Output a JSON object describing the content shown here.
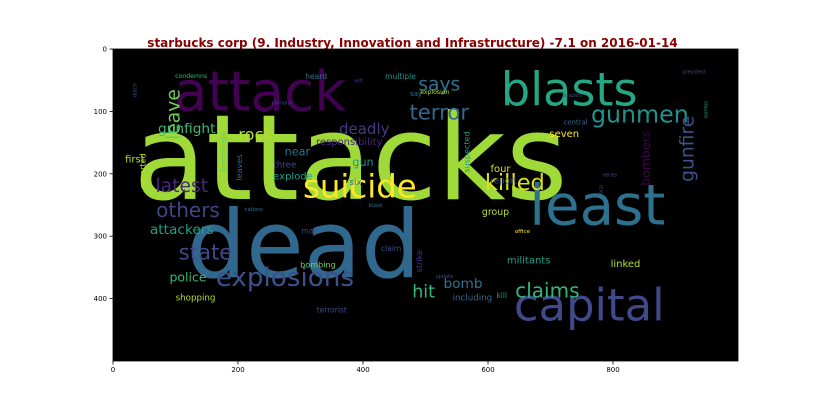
{
  "chart_data": {
    "type": "wordcloud",
    "title": "starbucks corp (9. Industry, Innovation and Infrastructure) -7.1 on 2016-01-14",
    "x_range": [
      0,
      1000
    ],
    "y_range": [
      0,
      500
    ],
    "x_ticks": [
      0,
      200,
      400,
      600,
      800
    ],
    "y_ticks": [
      0,
      100,
      200,
      300,
      400
    ],
    "background": "#000000",
    "words": [
      {
        "text": "attacks",
        "x": 380,
        "y": 175,
        "size": 190,
        "color": "#a0da39"
      },
      {
        "text": "dead",
        "x": 305,
        "y": 315,
        "size": 150,
        "color": "#31688e"
      },
      {
        "text": "attack",
        "x": 235,
        "y": 68,
        "size": 88,
        "color": "#440154"
      },
      {
        "text": "blasts",
        "x": 730,
        "y": 65,
        "size": 74,
        "color": "#26a784"
      },
      {
        "text": "least",
        "x": 775,
        "y": 252,
        "size": 90,
        "color": "#2c728e"
      },
      {
        "text": "capital",
        "x": 762,
        "y": 410,
        "size": 72,
        "color": "#3e4a89"
      },
      {
        "text": "suicide",
        "x": 395,
        "y": 220,
        "size": 52,
        "color": "#fde725"
      },
      {
        "text": "explosions",
        "x": 275,
        "y": 367,
        "size": 42,
        "color": "#3b528b"
      },
      {
        "text": "gunmen",
        "x": 843,
        "y": 105,
        "size": 38,
        "color": "#20928c"
      },
      {
        "text": "terror",
        "x": 522,
        "y": 101,
        "size": 34,
        "color": "#31688e"
      },
      {
        "text": "killed",
        "x": 643,
        "y": 215,
        "size": 36,
        "color": "#d8e219"
      },
      {
        "text": "says",
        "x": 522,
        "y": 58,
        "size": 30,
        "color": "#2c728e"
      },
      {
        "text": "state",
        "x": 148,
        "y": 325,
        "size": 34,
        "color": "#3e4a89"
      },
      {
        "text": "others",
        "x": 120,
        "y": 258,
        "size": 32,
        "color": "#414487"
      },
      {
        "text": "claims",
        "x": 695,
        "y": 387,
        "size": 32,
        "color": "#35b779"
      },
      {
        "text": "latest",
        "x": 110,
        "y": 220,
        "size": 30,
        "color": "#482878"
      },
      {
        "text": "leave",
        "x": 98,
        "y": 105,
        "size": 30,
        "color": "#6ece58",
        "rotate": true
      },
      {
        "text": "gunfire",
        "x": 920,
        "y": 160,
        "size": 30,
        "color": "#3b528b",
        "rotate": true
      },
      {
        "text": "rock",
        "x": 228,
        "y": 137,
        "size": 26,
        "color": "#b5de2b"
      },
      {
        "text": "deadly",
        "x": 402,
        "y": 128,
        "size": 24,
        "color": "#443a83"
      },
      {
        "text": "gunfight",
        "x": 118,
        "y": 128,
        "size": 22,
        "color": "#3aba76"
      },
      {
        "text": "attackers",
        "x": 110,
        "y": 290,
        "size": 22,
        "color": "#1f9e89"
      },
      {
        "text": "hit",
        "x": 497,
        "y": 390,
        "size": 28,
        "color": "#35b779"
      },
      {
        "text": "bomb",
        "x": 560,
        "y": 377,
        "size": 22,
        "color": "#2c728e"
      },
      {
        "text": "police",
        "x": 120,
        "y": 365,
        "size": 20,
        "color": "#35b779"
      },
      {
        "text": "bombers",
        "x": 852,
        "y": 175,
        "size": 20,
        "color": "#440154",
        "rotate": true
      },
      {
        "text": "seven",
        "x": 722,
        "y": 137,
        "size": 16,
        "color": "#fde725"
      },
      {
        "text": "responsibility",
        "x": 378,
        "y": 150,
        "size": 16,
        "color": "#482878"
      },
      {
        "text": "near",
        "x": 295,
        "y": 165,
        "size": 18,
        "color": "#2c728e"
      },
      {
        "text": "gun",
        "x": 400,
        "y": 182,
        "size": 18,
        "color": "#21918c"
      },
      {
        "text": "explode",
        "x": 288,
        "y": 205,
        "size": 16,
        "color": "#1f9e89"
      },
      {
        "text": "three",
        "x": 275,
        "y": 187,
        "size": 14,
        "color": "#3e4a89"
      },
      {
        "text": "six",
        "x": 388,
        "y": 215,
        "size": 14,
        "color": "#2c728e"
      },
      {
        "text": "first",
        "x": 35,
        "y": 178,
        "size": 16,
        "color": "#b5de2b"
      },
      {
        "text": "four",
        "x": 620,
        "y": 193,
        "size": 16,
        "color": "#d8e219"
      },
      {
        "text": "group",
        "x": 612,
        "y": 262,
        "size": 15,
        "color": "#b5de2b"
      },
      {
        "text": "report",
        "x": 625,
        "y": 212,
        "size": 14,
        "color": "#3e4a89"
      },
      {
        "text": "militants",
        "x": 665,
        "y": 340,
        "size": 16,
        "color": "#1f9e89"
      },
      {
        "text": "linked",
        "x": 820,
        "y": 345,
        "size": 16,
        "color": "#b5de2b"
      },
      {
        "text": "shopping",
        "x": 132,
        "y": 400,
        "size": 14,
        "color": "#b5de2b"
      },
      {
        "text": "including",
        "x": 575,
        "y": 400,
        "size": 14,
        "color": "#31688e"
      },
      {
        "text": "bombing",
        "x": 328,
        "y": 345,
        "size": 13,
        "color": "#6ece58"
      },
      {
        "text": "strike",
        "x": 490,
        "y": 340,
        "size": 13,
        "color": "#443a83",
        "rotate": true
      },
      {
        "text": "kill",
        "x": 622,
        "y": 395,
        "size": 12,
        "color": "#21918c"
      },
      {
        "text": "terrorist",
        "x": 350,
        "y": 418,
        "size": 12,
        "color": "#3e4a89"
      },
      {
        "text": "claim",
        "x": 445,
        "y": 320,
        "size": 12,
        "color": "#3e4a89"
      },
      {
        "text": "man",
        "x": 315,
        "y": 292,
        "size": 12,
        "color": "#3e4a89"
      },
      {
        "text": "reported",
        "x": 47,
        "y": 195,
        "size": 13,
        "color": "#b5de2b",
        "rotate": true
      },
      {
        "text": "bombings",
        "x": 176,
        "y": 165,
        "size": 13,
        "color": "#6ece58",
        "rotate": true
      },
      {
        "text": "leaves",
        "x": 202,
        "y": 190,
        "size": 13,
        "color": "#31688e",
        "rotate": true
      },
      {
        "text": "suspected",
        "x": 566,
        "y": 165,
        "size": 13,
        "color": "#1f9e89",
        "rotate": true
      },
      {
        "text": "central",
        "x": 740,
        "y": 118,
        "size": 11,
        "color": "#31688e"
      },
      {
        "text": "heard",
        "x": 325,
        "y": 44,
        "size": 12,
        "color": "#2c728e"
      },
      {
        "text": "multiple",
        "x": 460,
        "y": 44,
        "size": 12,
        "color": "#20928c"
      },
      {
        "text": "say",
        "x": 485,
        "y": 72,
        "size": 11,
        "color": "#2c728e"
      },
      {
        "text": "explosion",
        "x": 515,
        "y": 70,
        "size": 10,
        "color": "#b5de2b"
      },
      {
        "text": "brazen",
        "x": 735,
        "y": 75,
        "size": 9,
        "color": "#3e4a89"
      },
      {
        "text": "condemns",
        "x": 125,
        "y": 44,
        "size": 10,
        "color": "#35b779"
      },
      {
        "text": "left",
        "x": 393,
        "y": 52,
        "size": 9,
        "color": "#443a83"
      },
      {
        "text": "president",
        "x": 930,
        "y": 38,
        "size": 8,
        "color": "#3e4a89"
      },
      {
        "text": "bombs",
        "x": 950,
        "y": 97,
        "size": 8,
        "color": "#1f9e89",
        "rotate": true
      },
      {
        "text": "civilians",
        "x": 270,
        "y": 87,
        "size": 8,
        "color": "#3e4a89"
      },
      {
        "text": "dutch",
        "x": 36,
        "y": 66,
        "size": 8,
        "color": "#3e4a89",
        "rotate": true
      },
      {
        "text": "nations",
        "x": 225,
        "y": 258,
        "size": 8,
        "color": "#2c728e"
      },
      {
        "text": "blast",
        "x": 420,
        "y": 252,
        "size": 9,
        "color": "#2c728e"
      },
      {
        "text": "office",
        "x": 655,
        "y": 293,
        "size": 9,
        "color": "#fde725"
      },
      {
        "text": "update",
        "x": 530,
        "y": 365,
        "size": 8,
        "color": "#3e4a89"
      },
      {
        "text": "series",
        "x": 795,
        "y": 203,
        "size": 8,
        "color": "#3e4a89"
      },
      {
        "text": "asp",
        "x": 782,
        "y": 225,
        "size": 8,
        "color": "#3e4a89",
        "rotate": true
      }
    ]
  }
}
